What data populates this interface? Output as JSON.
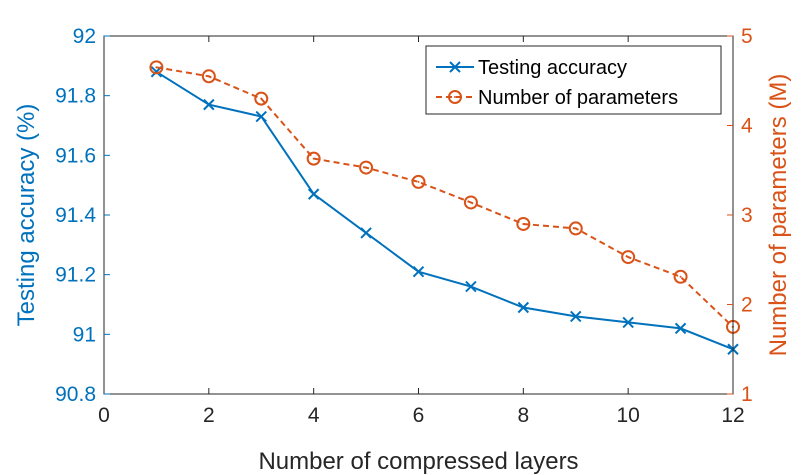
{
  "chart_data": {
    "type": "line",
    "xlabel": "Number of compressed layers",
    "ylabel_left": "Testing accuracy (%)",
    "ylabel_right": "Number of parameters (M)",
    "xlim": [
      0,
      12
    ],
    "ylim_left": [
      90.8,
      92
    ],
    "ylim_right": [
      1,
      5
    ],
    "x_ticks": [
      "0",
      "2",
      "4",
      "6",
      "8",
      "10",
      "12"
    ],
    "left_ticks": [
      "90.8",
      "91",
      "91.2",
      "91.4",
      "91.6",
      "91.8",
      "92"
    ],
    "right_ticks": [
      "1",
      "2",
      "3",
      "4",
      "5"
    ],
    "legend_position": "top-right",
    "grid": false,
    "series": [
      {
        "name": "Testing accuracy",
        "axis": "left",
        "color": "#0072BD",
        "marker": "x",
        "line_style": "solid",
        "x": [
          1,
          2,
          3,
          4,
          5,
          6,
          7,
          8,
          9,
          10,
          11,
          12
        ],
        "values": [
          91.88,
          91.77,
          91.73,
          91.47,
          91.34,
          91.21,
          91.16,
          91.09,
          91.06,
          91.04,
          91.02,
          90.95
        ]
      },
      {
        "name": "Number of parameters",
        "axis": "right",
        "color": "#D95319",
        "marker": "o",
        "line_style": "dashed",
        "x": [
          1,
          2,
          3,
          4,
          5,
          6,
          7,
          8,
          9,
          10,
          11,
          12
        ],
        "values": [
          4.65,
          4.55,
          4.3,
          3.63,
          3.53,
          3.37,
          3.14,
          2.9,
          2.85,
          2.53,
          2.31,
          1.75
        ]
      }
    ]
  }
}
